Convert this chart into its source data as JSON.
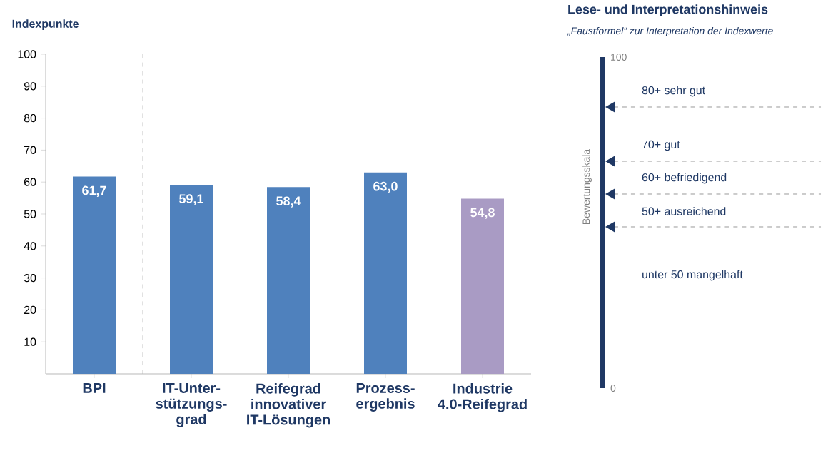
{
  "chart_data": [
    {
      "type": "bar",
      "ylabel": "Indexpunkte",
      "categories": [
        "BPI",
        "IT-Unter-stützungs-grad",
        "Reifegrad innovativer IT-Lösungen",
        "Prozess-ergebnis",
        "Industrie 4.0-Reifegrad"
      ],
      "values": [
        61.7,
        59.1,
        58.4,
        63.0,
        54.8
      ],
      "colors": [
        "#4f81bd",
        "#4f81bd",
        "#4f81bd",
        "#4f81bd",
        "#a99bc4"
      ],
      "value_labels": [
        "61,7",
        "59,1",
        "58,4",
        "63,0",
        "54,8"
      ],
      "ylim": [
        0,
        100
      ],
      "yticks": [
        10,
        20,
        30,
        40,
        50,
        60,
        70,
        80,
        90,
        100
      ],
      "grid": false
    },
    {
      "type": "other",
      "title": "Lese- und Interpretationshinweis",
      "subtitle": "„Faustformel“ zur Interpretation der Indexwerte",
      "ylabel": "Bewertungsskala",
      "annotations": [
        "100",
        "80+  sehr gut",
        "70+  gut",
        "60+  befriedigend",
        "50+  ausreichend",
        "unter 50  mangelhaft",
        "0"
      ]
    }
  ]
}
